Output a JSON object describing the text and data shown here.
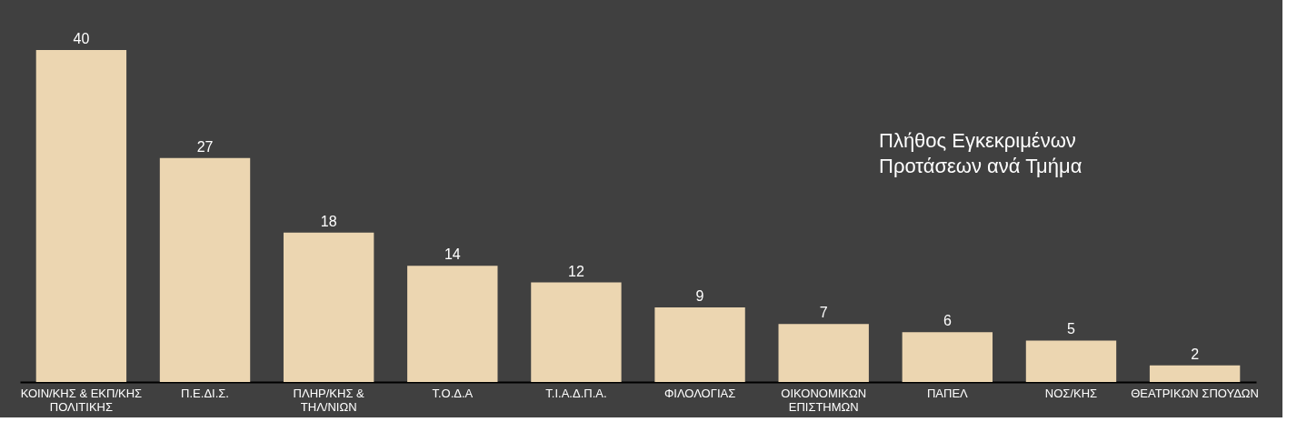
{
  "chart_data": {
    "type": "bar",
    "title": "Πλήθος Εγκεκριμένων Προτάσεων ανά Τμήμα",
    "categories": [
      "ΚΟΙΝ/ΚΗΣ & ΕΚΠ/ΚΗΣ ΠΟΛΙΤΙΚΗΣ",
      "Π.Ε.ΔΙ.Σ.",
      "ΠΛΗΡ/ΚΗΣ & ΤΗΛ/ΝΙΩΝ",
      "Τ.Ο.Δ.Α",
      "Τ.Ι.Α.Δ.Π.Α.",
      "ΦΙΛΟΛΟΓΙΑΣ",
      "ΟΙΚΟΝΟΜΙΚΩΝ ΕΠΙΣΤΗΜΩΝ",
      "ΠΑΠΕΛ",
      "ΝΟΣ/ΚΗΣ",
      "ΘΕΑΤΡΙΚΩΝ ΣΠΟΥΔΩΝ"
    ],
    "values": [
      40,
      27,
      18,
      14,
      12,
      9,
      7,
      6,
      5,
      2
    ],
    "color": "#ecd6b1",
    "data_labels": true,
    "tick_labels": "x"
  }
}
